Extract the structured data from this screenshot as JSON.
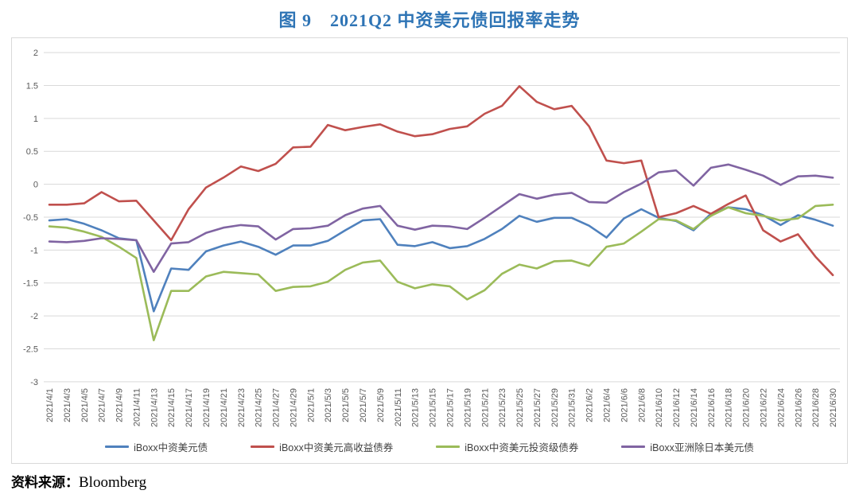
{
  "title": "图 9　2021Q2 中资美元债回报率走势",
  "source_label": "资料来源：",
  "source_value": "Bloomberg",
  "styles": {
    "title_color": "#2E74B5",
    "grid_color": "#D9D9D9",
    "tick_label_color": "#595959",
    "box_border_color": "#D9D9D9"
  },
  "chart_data": {
    "type": "line",
    "title": "2021Q2 中资美元债回报率走势",
    "xlabel": "",
    "ylabel": "",
    "ylim": [
      -3,
      2
    ],
    "y_ticks": [
      2,
      1.5,
      1,
      0.5,
      0,
      -0.5,
      -1,
      -1.5,
      -2,
      -2.5,
      -3
    ],
    "grid": true,
    "legend_position": "bottom",
    "x_labels": [
      "2021/4/1",
      "2021/4/3",
      "2021/4/5",
      "2021/4/7",
      "2021/4/9",
      "2021/4/11",
      "2021/4/13",
      "2021/4/15",
      "2021/4/17",
      "2021/4/19",
      "2021/4/21",
      "2021/4/23",
      "2021/4/25",
      "2021/4/27",
      "2021/4/29",
      "2021/5/1",
      "2021/5/3",
      "2021/5/5",
      "2021/5/7",
      "2021/5/9",
      "2021/5/11",
      "2021/5/13",
      "2021/5/15",
      "2021/5/17",
      "2021/5/19",
      "2021/5/21",
      "2021/5/23",
      "2021/5/25",
      "2021/5/27",
      "2021/5/29",
      "2021/5/31",
      "2021/6/2",
      "2021/6/4",
      "2021/6/6",
      "2021/6/8",
      "2021/6/10",
      "2021/6/12",
      "2021/6/14",
      "2021/6/16",
      "2021/6/18",
      "2021/6/20",
      "2021/6/22",
      "2021/6/24",
      "2021/6/26",
      "2021/6/28",
      "2021/6/30"
    ],
    "series": [
      {
        "name": "iBoxx中资美元债",
        "color": "#4F81BD",
        "values": [
          -0.55,
          -0.53,
          -0.6,
          -0.7,
          -0.82,
          -0.85,
          -1.93,
          -1.28,
          -1.3,
          -1.02,
          -0.93,
          -0.87,
          -0.95,
          -1.07,
          -0.93,
          -0.93,
          -0.86,
          -0.7,
          -0.55,
          -0.53,
          -0.92,
          -0.94,
          -0.88,
          -0.97,
          -0.94,
          -0.83,
          -0.68,
          -0.48,
          -0.57,
          -0.51,
          -0.51,
          -0.63,
          -0.81,
          -0.52,
          -0.38,
          -0.51,
          -0.56,
          -0.7,
          -0.45,
          -0.35,
          -0.38,
          -0.47,
          -0.62,
          -0.47,
          -0.54,
          -0.63
        ]
      },
      {
        "name": "iBoxx中资美元高收益债券",
        "color": "#C0504D",
        "values": [
          -0.31,
          -0.31,
          -0.29,
          -0.12,
          -0.26,
          -0.25,
          -0.55,
          -0.85,
          -0.38,
          -0.05,
          0.1,
          0.27,
          0.2,
          0.31,
          0.56,
          0.57,
          0.9,
          0.82,
          0.87,
          0.91,
          0.8,
          0.73,
          0.76,
          0.84,
          0.88,
          1.07,
          1.19,
          1.49,
          1.25,
          1.14,
          1.19,
          0.88,
          0.36,
          0.32,
          0.36,
          -0.5,
          -0.44,
          -0.33,
          -0.45,
          -0.3,
          -0.17,
          -0.7,
          -0.87,
          -0.76,
          -1.1,
          -1.38
        ]
      },
      {
        "name": "iBoxx中资美元投资级债券",
        "color": "#9BBB59",
        "values": [
          -0.64,
          -0.66,
          -0.72,
          -0.8,
          -0.95,
          -1.12,
          -2.37,
          -1.62,
          -1.62,
          -1.4,
          -1.33,
          -1.35,
          -1.37,
          -1.62,
          -1.56,
          -1.55,
          -1.48,
          -1.3,
          -1.19,
          -1.16,
          -1.48,
          -1.58,
          -1.52,
          -1.55,
          -1.75,
          -1.61,
          -1.36,
          -1.22,
          -1.28,
          -1.17,
          -1.16,
          -1.24,
          -0.95,
          -0.9,
          -0.72,
          -0.53,
          -0.55,
          -0.68,
          -0.48,
          -0.35,
          -0.44,
          -0.48,
          -0.55,
          -0.52,
          -0.33,
          -0.31
        ]
      },
      {
        "name": "iBoxx亚洲除日本美元债",
        "color": "#8064A2",
        "values": [
          -0.87,
          -0.88,
          -0.86,
          -0.82,
          -0.83,
          -0.85,
          -1.33,
          -0.9,
          -0.88,
          -0.74,
          -0.66,
          -0.62,
          -0.64,
          -0.84,
          -0.68,
          -0.67,
          -0.63,
          -0.47,
          -0.37,
          -0.33,
          -0.63,
          -0.69,
          -0.63,
          -0.64,
          -0.68,
          -0.51,
          -0.33,
          -0.15,
          -0.22,
          -0.16,
          -0.13,
          -0.27,
          -0.28,
          -0.12,
          0.01,
          0.18,
          0.21,
          -0.02,
          0.25,
          0.3,
          0.22,
          0.13,
          -0.01,
          0.12,
          0.13,
          0.1
        ]
      }
    ]
  }
}
